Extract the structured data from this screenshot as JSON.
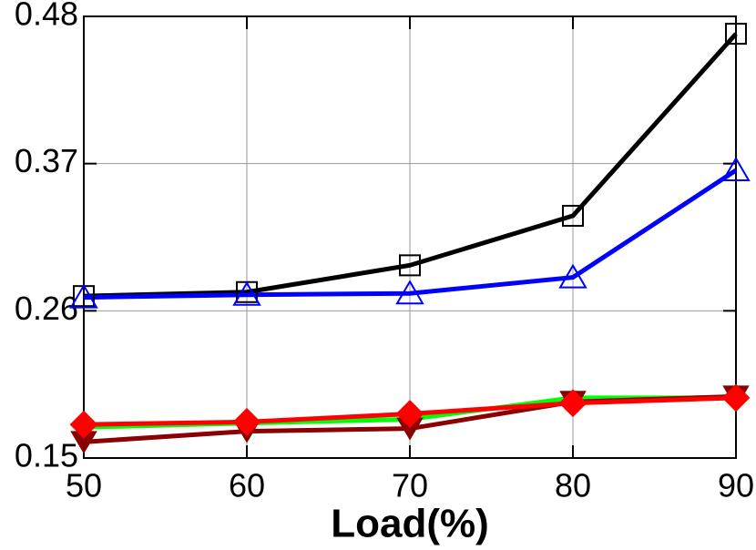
{
  "chart_data": {
    "type": "line",
    "x_label": "Load(%)",
    "x": [
      50,
      60,
      70,
      80,
      90
    ],
    "xlim": [
      50,
      90
    ],
    "xticks": [
      50,
      60,
      70,
      80,
      90
    ],
    "ylim": [
      0.15,
      0.48
    ],
    "yticks": [
      0.15,
      0.26,
      0.37,
      0.48
    ],
    "grid": true,
    "series": [
      {
        "color": "#000000",
        "marker": "square-open",
        "values": [
          0.271,
          0.274,
          0.294,
          0.331,
          0.467
        ]
      },
      {
        "color": "#0000ff",
        "marker": "triangle-open",
        "values": [
          0.27,
          0.272,
          0.273,
          0.285,
          0.365
        ]
      },
      {
        "color": "#00ff00",
        "marker": "none",
        "values": [
          0.173,
          0.176,
          0.179,
          0.195,
          0.195
        ]
      },
      {
        "color": "#8b0000",
        "marker": "triangle-down-filled",
        "values": [
          0.162,
          0.17,
          0.172,
          0.192,
          0.196
        ]
      },
      {
        "color": "#ff0000",
        "marker": "diamond-filled",
        "values": [
          0.175,
          0.177,
          0.183,
          0.191,
          0.195
        ]
      }
    ]
  }
}
